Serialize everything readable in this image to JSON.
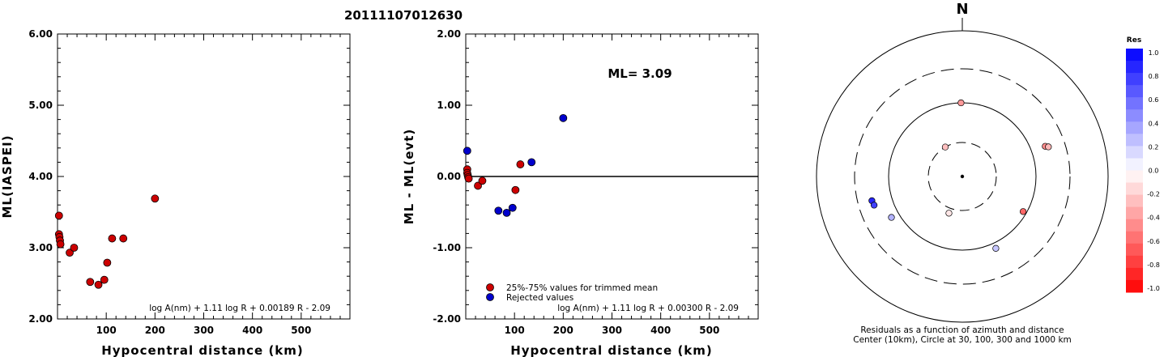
{
  "page_title": "20111107012630",
  "colors": {
    "trimmed": "#cc0000",
    "rejected": "#0000cc",
    "frame": "#000000"
  },
  "chart_data": [
    {
      "type": "scatter",
      "xlabel": "Hypocentral distance (km)",
      "ylabel": "ML(IASPEI)",
      "xlim": [
        0,
        600
      ],
      "ylim": [
        2.0,
        6.0
      ],
      "x_ticks": [
        "100",
        "200",
        "300",
        "400",
        "500"
      ],
      "y_ticks": [
        "2.00",
        "3.00",
        "4.00",
        "5.00",
        "6.00"
      ],
      "formula": "log A(nm) + 1.11 log R + 0.00189 R - 2.09",
      "series": [
        {
          "color": "#cc0000",
          "points": [
            [
              3,
              3.45
            ],
            [
              3,
              3.19
            ],
            [
              4,
              3.15
            ],
            [
              5,
              3.1
            ],
            [
              6,
              3.05
            ],
            [
              25,
              2.93
            ],
            [
              34,
              3.0
            ],
            [
              67,
              2.52
            ],
            [
              84,
              2.48
            ],
            [
              96,
              2.55
            ],
            [
              102,
              2.79
            ],
            [
              112,
              3.13
            ],
            [
              135,
              3.13
            ],
            [
              200,
              3.69
            ]
          ]
        }
      ]
    },
    {
      "type": "scatter",
      "xlabel": "Hypocentral distance (km)",
      "ylabel": "ML - ML(evt)",
      "xlim": [
        0,
        600
      ],
      "ylim": [
        -2.0,
        2.0
      ],
      "x_ticks": [
        "100",
        "200",
        "300",
        "400",
        "500"
      ],
      "y_ticks": [
        "-2.00",
        "-1.00",
        "0.00",
        "1.00",
        "2.00"
      ],
      "ml_label": "ML= 3.09",
      "formula": "log A(nm) + 1.11 log R + 0.00300 R - 2.09",
      "reference_line": 0.0,
      "legend": [
        "25%-75% values for trimmed mean",
        "Rejected values"
      ],
      "series": [
        {
          "name": "25%-75% values for trimmed mean",
          "color": "#cc0000",
          "points": [
            [
              3,
              0.1
            ],
            [
              3,
              0.05
            ],
            [
              4,
              0.02
            ],
            [
              5,
              -0.01
            ],
            [
              6,
              -0.03
            ],
            [
              25,
              -0.13
            ],
            [
              34,
              -0.06
            ],
            [
              102,
              -0.19
            ],
            [
              112,
              0.17
            ]
          ]
        },
        {
          "name": "Rejected values",
          "color": "#0000cc",
          "points": [
            [
              3,
              0.36
            ],
            [
              67,
              -0.48
            ],
            [
              84,
              -0.51
            ],
            [
              96,
              -0.44
            ],
            [
              135,
              0.2
            ],
            [
              200,
              0.82
            ]
          ]
        }
      ]
    },
    {
      "type": "scatter",
      "subtype": "polar-residuals",
      "north_label": "N",
      "caption_line1": "Residuals as a function of azimuth and distance",
      "caption_line2": "Center (10km), Circle at 30, 100, 300 and 1000 km",
      "colorbar_title": "Res",
      "colorbar_ticks": [
        "1.0",
        "0.8",
        "0.6",
        "0.4",
        "0.2",
        "0.0",
        "-0.2",
        "-0.4",
        "-0.6",
        "-0.8",
        "-1.0"
      ],
      "points": [
        {
          "azimuth": 359,
          "distance_km": 100,
          "residual": -0.4
        },
        {
          "azimuth": 330,
          "distance_km": 30,
          "residual": -0.25
        },
        {
          "azimuth": 70,
          "distance_km": 160,
          "residual": -0.45
        },
        {
          "azimuth": 71,
          "distance_km": 175,
          "residual": -0.28
        },
        {
          "azimuth": 120,
          "distance_km": 90,
          "residual": -0.6
        },
        {
          "azimuth": 200,
          "distance_km": 35,
          "residual": -0.1
        },
        {
          "azimuth": 155,
          "distance_km": 120,
          "residual": 0.22
        },
        {
          "azimuth": 240,
          "distance_km": 130,
          "residual": 0.3
        },
        {
          "azimuth": 255,
          "distance_km": 190,
          "residual": 0.85
        },
        {
          "azimuth": 252,
          "distance_km": 185,
          "residual": 0.75
        }
      ]
    }
  ]
}
